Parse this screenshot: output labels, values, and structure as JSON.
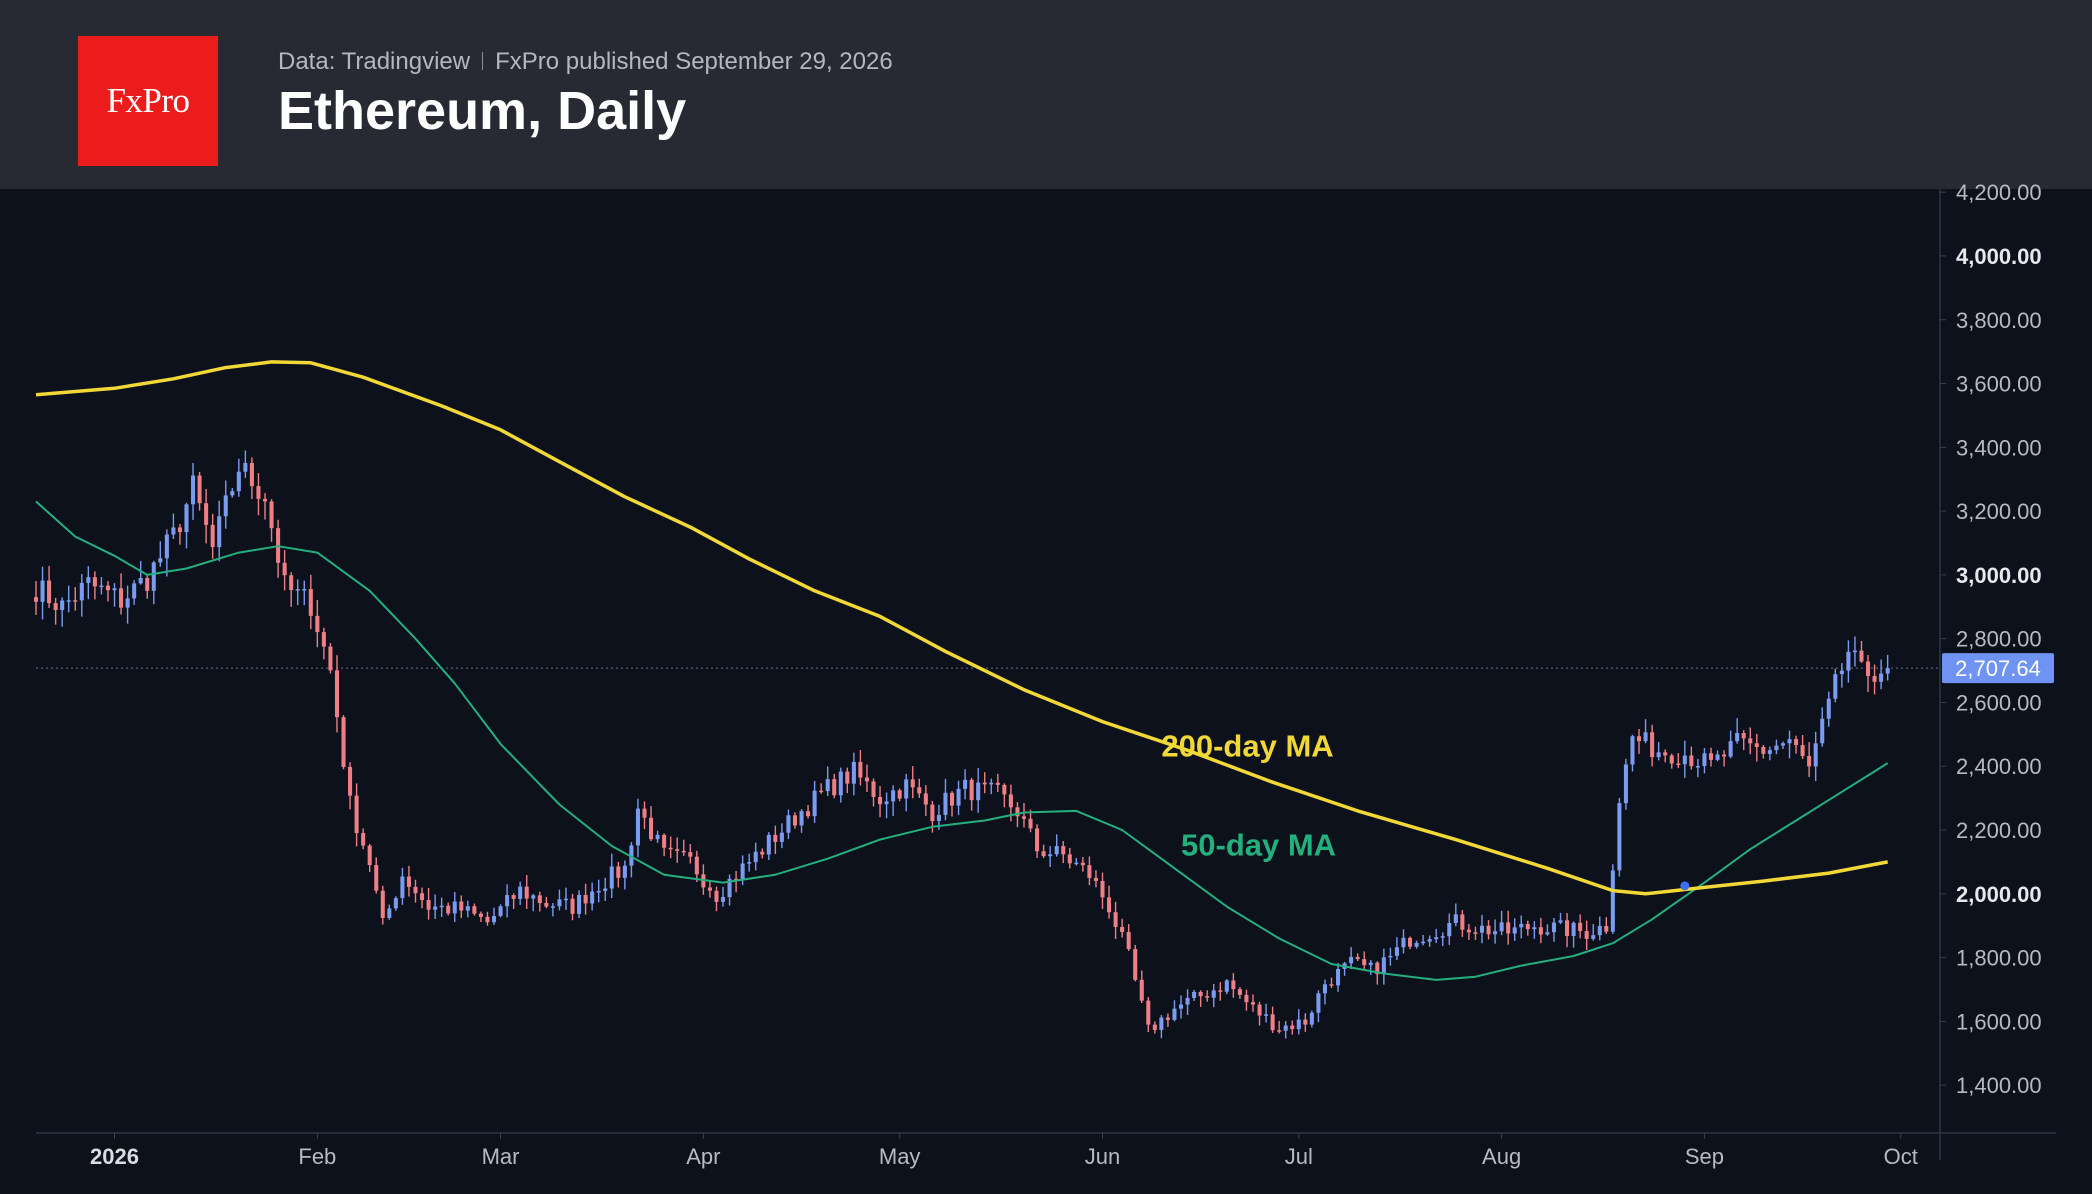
{
  "header": {
    "logo_text": "FxPro",
    "source": "Data: Tradingview",
    "published": "FxPro published September 29, 2026",
    "title": "Ethereum, Daily"
  },
  "colors": {
    "background": "#0c111c",
    "header_bg": "#272a33",
    "logo_bg": "#ec1c1c",
    "bull": "#7b9bf0",
    "bear": "#ef7f86",
    "ma200": "#f2d836",
    "ma50": "#23b07d",
    "price_badge": "#6f93f2"
  },
  "chart_data": {
    "type": "candlestick",
    "x_tick_labels": [
      "2026",
      "Feb",
      "Mar",
      "Apr",
      "May",
      "Jun",
      "Jul",
      "Aug",
      "Sep",
      "Oct"
    ],
    "x_tick_dates": [
      "2026-01-01",
      "2026-02-01",
      "2026-03-01",
      "2026-04-01",
      "2026-05-01",
      "2026-06-01",
      "2026-07-01",
      "2026-08-01",
      "2026-09-01",
      "2026-10-01"
    ],
    "x_range": [
      "2025-12-20",
      "2026-10-07"
    ],
    "y_range": [
      1250,
      4210
    ],
    "y_ticks": [
      1400,
      1600,
      1800,
      2000,
      2200,
      2400,
      2600,
      2800,
      3000,
      3200,
      3400,
      3600,
      3800,
      4000,
      4200
    ],
    "y_tick_labels": [
      "1,400.00",
      "1,600.00",
      "1,800.00",
      "2,000.00",
      "2,200.00",
      "2,400.00",
      "2,600.00",
      "2,800.00",
      "3,000.00",
      "3,200.00",
      "3,400.00",
      "3,600.00",
      "3,800.00",
      "4,000.00",
      "4,200.00"
    ],
    "y_bold_ticks": [
      2000,
      3000,
      4000
    ],
    "last_price": 2707.64,
    "last_price_label": "2,707.64",
    "price_keypoints": [
      [
        "2025-12-20",
        2960
      ],
      [
        "2025-12-24",
        2900
      ],
      [
        "2025-12-28",
        2970
      ],
      [
        "2026-01-02",
        2920
      ],
      [
        "2026-01-06",
        2990
      ],
      [
        "2026-01-10",
        3120
      ],
      [
        "2026-01-13",
        3270
      ],
      [
        "2026-01-16",
        3080
      ],
      [
        "2026-01-20",
        3340
      ],
      [
        "2026-01-24",
        3250
      ],
      [
        "2026-01-27",
        2960
      ],
      [
        "2026-01-31",
        2910
      ],
      [
        "2026-02-03",
        2700
      ],
      [
        "2026-02-06",
        2280
      ],
      [
        "2026-02-09",
        2100
      ],
      [
        "2026-02-11",
        1900
      ],
      [
        "2026-02-14",
        2060
      ],
      [
        "2026-02-18",
        1960
      ],
      [
        "2026-02-23",
        1950
      ],
      [
        "2026-02-27",
        1910
      ],
      [
        "2026-03-04",
        2010
      ],
      [
        "2026-03-08",
        1970
      ],
      [
        "2026-03-12",
        1960
      ],
      [
        "2026-03-16",
        2030
      ],
      [
        "2026-03-20",
        2080
      ],
      [
        "2026-03-22",
        2270
      ],
      [
        "2026-03-26",
        2120
      ],
      [
        "2026-03-30",
        2100
      ],
      [
        "2026-04-03",
        2000
      ],
      [
        "2026-04-08",
        2100
      ],
      [
        "2026-04-12",
        2180
      ],
      [
        "2026-04-16",
        2260
      ],
      [
        "2026-04-20",
        2330
      ],
      [
        "2026-04-24",
        2380
      ],
      [
        "2026-04-28",
        2300
      ],
      [
        "2026-05-02",
        2340
      ],
      [
        "2026-05-06",
        2260
      ],
      [
        "2026-05-11",
        2330
      ],
      [
        "2026-05-16",
        2310
      ],
      [
        "2026-05-19",
        2260
      ],
      [
        "2026-05-22",
        2140
      ],
      [
        "2026-05-26",
        2120
      ],
      [
        "2026-05-30",
        2060
      ],
      [
        "2026-06-02",
        1960
      ],
      [
        "2026-06-05",
        1800
      ],
      [
        "2026-06-08",
        1570
      ],
      [
        "2026-06-12",
        1640
      ],
      [
        "2026-06-16",
        1680
      ],
      [
        "2026-06-20",
        1720
      ],
      [
        "2026-06-24",
        1640
      ],
      [
        "2026-06-28",
        1580
      ],
      [
        "2026-07-02",
        1600
      ],
      [
        "2026-07-05",
        1720
      ],
      [
        "2026-07-09",
        1780
      ],
      [
        "2026-07-12",
        1760
      ],
      [
        "2026-07-15",
        1800
      ],
      [
        "2026-07-18",
        1860
      ],
      [
        "2026-07-21",
        1880
      ],
      [
        "2026-07-25",
        1910
      ],
      [
        "2026-07-29",
        1890
      ],
      [
        "2026-08-02",
        1880
      ],
      [
        "2026-08-06",
        1900
      ],
      [
        "2026-08-10",
        1890
      ],
      [
        "2026-08-14",
        1880
      ],
      [
        "2026-08-17",
        1900
      ],
      [
        "2026-08-19",
        2300
      ],
      [
        "2026-08-21",
        2490
      ],
      [
        "2026-08-25",
        2450
      ],
      [
        "2026-08-29",
        2440
      ],
      [
        "2026-09-02",
        2400
      ],
      [
        "2026-09-06",
        2470
      ],
      [
        "2026-09-10",
        2450
      ],
      [
        "2026-09-14",
        2480
      ],
      [
        "2026-09-17",
        2390
      ],
      [
        "2026-09-19",
        2520
      ],
      [
        "2026-09-21",
        2650
      ],
      [
        "2026-09-23",
        2760
      ],
      [
        "2026-09-25",
        2690
      ],
      [
        "2026-09-29",
        2707.64
      ]
    ],
    "series": [
      {
        "name": "200-day MA",
        "points": [
          [
            "2025-12-20",
            3565
          ],
          [
            "2026-01-01",
            3585
          ],
          [
            "2026-01-10",
            3615
          ],
          [
            "2026-01-18",
            3650
          ],
          [
            "2026-01-25",
            3668
          ],
          [
            "2026-01-31",
            3665
          ],
          [
            "2026-02-08",
            3620
          ],
          [
            "2026-02-20",
            3530
          ],
          [
            "2026-03-01",
            3455
          ],
          [
            "2026-03-10",
            3355
          ],
          [
            "2026-03-20",
            3245
          ],
          [
            "2026-03-30",
            3150
          ],
          [
            "2026-04-08",
            3050
          ],
          [
            "2026-04-18",
            2950
          ],
          [
            "2026-04-28",
            2870
          ],
          [
            "2026-05-08",
            2760
          ],
          [
            "2026-05-20",
            2640
          ],
          [
            "2026-06-01",
            2540
          ],
          [
            "2026-06-14",
            2450
          ],
          [
            "2026-06-27",
            2350
          ],
          [
            "2026-07-10",
            2260
          ],
          [
            "2026-07-25",
            2170
          ],
          [
            "2026-08-08",
            2080
          ],
          [
            "2026-08-18",
            2010
          ],
          [
            "2026-08-23",
            2000
          ],
          [
            "2026-09-01",
            2020
          ],
          [
            "2026-09-10",
            2040
          ],
          [
            "2026-09-20",
            2065
          ],
          [
            "2026-09-29",
            2100
          ]
        ]
      },
      {
        "name": "50-day MA",
        "points": [
          [
            "2025-12-20",
            3230
          ],
          [
            "2025-12-26",
            3120
          ],
          [
            "2026-01-01",
            3060
          ],
          [
            "2026-01-06",
            3000
          ],
          [
            "2026-01-12",
            3020
          ],
          [
            "2026-01-20",
            3070
          ],
          [
            "2026-01-26",
            3090
          ],
          [
            "2026-02-01",
            3070
          ],
          [
            "2026-02-09",
            2950
          ],
          [
            "2026-02-16",
            2800
          ],
          [
            "2026-02-22",
            2660
          ],
          [
            "2026-03-01",
            2470
          ],
          [
            "2026-03-10",
            2280
          ],
          [
            "2026-03-18",
            2150
          ],
          [
            "2026-03-26",
            2060
          ],
          [
            "2026-04-04",
            2035
          ],
          [
            "2026-04-12",
            2060
          ],
          [
            "2026-04-20",
            2110
          ],
          [
            "2026-04-28",
            2170
          ],
          [
            "2026-05-06",
            2210
          ],
          [
            "2026-05-14",
            2230
          ],
          [
            "2026-05-20",
            2255
          ],
          [
            "2026-05-28",
            2260
          ],
          [
            "2026-06-04",
            2200
          ],
          [
            "2026-06-12",
            2080
          ],
          [
            "2026-06-20",
            1960
          ],
          [
            "2026-06-28",
            1860
          ],
          [
            "2026-07-06",
            1780
          ],
          [
            "2026-07-14",
            1750
          ],
          [
            "2026-07-22",
            1730
          ],
          [
            "2026-07-28",
            1740
          ],
          [
            "2026-08-04",
            1775
          ],
          [
            "2026-08-12",
            1805
          ],
          [
            "2026-08-18",
            1845
          ],
          [
            "2026-08-24",
            1920
          ],
          [
            "2026-09-01",
            2035
          ],
          [
            "2026-09-08",
            2140
          ],
          [
            "2026-09-15",
            2230
          ],
          [
            "2026-09-22",
            2320
          ],
          [
            "2026-09-29",
            2410
          ]
        ]
      }
    ],
    "annotations": [
      {
        "text": "200-day MA",
        "date": "2026-06-10",
        "value": 2430
      },
      {
        "text": "50-day MA",
        "date": "2026-06-13",
        "value": 2120
      }
    ],
    "crossover": {
      "date": "2026-08-29",
      "value": 2025
    }
  }
}
